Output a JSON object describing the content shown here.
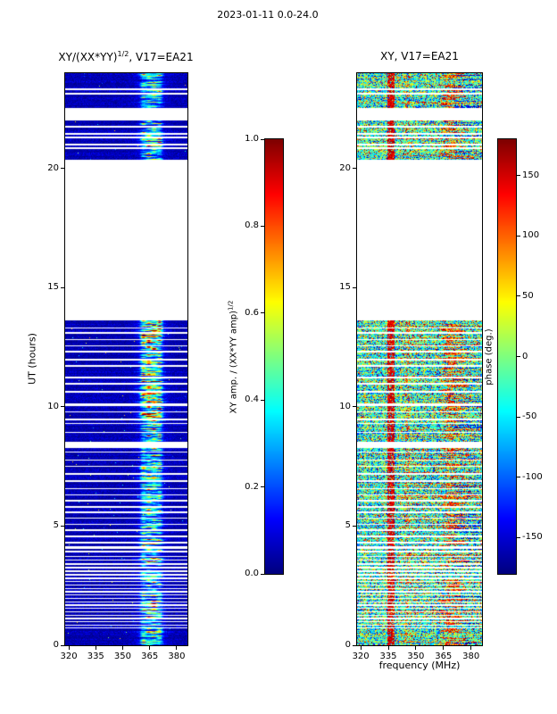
{
  "figure_title": "2023-01-11 0.0-24.0",
  "chart_data": [
    {
      "type": "heatmap",
      "name": "xy_normalized_amplitude",
      "title_parts": {
        "pre": "XY/(XX*YY)",
        "sup": "1/2",
        "post": ", V17=EA21"
      },
      "ylabel": "UT (hours)",
      "xlim": [
        318,
        386
      ],
      "ylim": [
        0,
        24
      ],
      "xticks": [
        320,
        335,
        350,
        365,
        380
      ],
      "yticks": [
        0,
        5,
        10,
        15,
        20
      ],
      "colormap": "jet",
      "value_range": [
        0,
        1
      ],
      "colorbar": {
        "label_parts": {
          "pre": "XY amp. / (XX*YY amp)",
          "sup": "1/2",
          "post": ""
        },
        "ticks": [
          {
            "label": "1.0",
            "value": 1.0
          },
          {
            "label": "0.8",
            "value": 0.8
          },
          {
            "label": "0.6",
            "value": 0.6
          },
          {
            "label": "0.4",
            "value": 0.4
          },
          {
            "label": "0.2",
            "value": 0.2
          },
          {
            "label": "0.0",
            "value": 0.0
          }
        ]
      },
      "background_level": [
        0.01,
        0.09
      ],
      "bright_band": {
        "center_mhz": 366,
        "sigma_mhz": 4.5,
        "amplitude": 0.38,
        "streak_centers_mhz": [
          361.5,
          364.5,
          367.5,
          370.5
        ]
      }
    },
    {
      "type": "heatmap",
      "name": "xy_phase",
      "title": "XY, V17=EA21",
      "xlabel": "frequency (MHz)",
      "xlim": [
        318,
        386
      ],
      "ylim": [
        0,
        24
      ],
      "xticks": [
        320,
        335,
        350,
        365,
        380
      ],
      "yticks": [
        0,
        5,
        10,
        15,
        20
      ],
      "colormap": "jet",
      "value_range": [
        -180,
        180
      ],
      "colorbar": {
        "label": "phase (deg.)",
        "ticks": [
          {
            "label": "150",
            "value": 150
          },
          {
            "label": "100",
            "value": 100
          },
          {
            "label": "50",
            "value": 50
          },
          {
            "label": "0",
            "value": 0
          },
          {
            "label": "-50",
            "value": -50
          },
          {
            "label": "-100",
            "value": -100
          },
          {
            "label": "-150",
            "value": -150
          }
        ]
      },
      "features": {
        "noise_bias_deg": -40,
        "red_column_mhz": 336.5,
        "red_patch_range_mhz": [
          362,
          378
        ]
      }
    }
  ],
  "time_gaps_hours": [
    [
      23.28,
      23.36
    ],
    [
      23.12,
      23.18
    ],
    [
      22.0,
      22.55
    ],
    [
      21.7,
      21.78
    ],
    [
      21.4,
      21.48
    ],
    [
      21.28,
      21.35
    ],
    [
      20.96,
      21.04
    ],
    [
      20.8,
      20.88
    ],
    [
      13.62,
      20.35
    ],
    [
      13.28,
      13.34
    ],
    [
      13.08,
      13.14
    ],
    [
      12.8,
      12.86
    ],
    [
      12.53,
      12.59
    ],
    [
      12.28,
      12.34
    ],
    [
      11.94,
      12.01
    ],
    [
      11.68,
      11.74
    ],
    [
      11.2,
      11.26
    ],
    [
      10.93,
      10.99
    ],
    [
      10.6,
      10.66
    ],
    [
      10.04,
      10.15
    ],
    [
      9.76,
      9.82
    ],
    [
      9.44,
      9.5
    ],
    [
      9.28,
      9.34
    ],
    [
      8.9,
      8.96
    ],
    [
      8.28,
      8.52
    ],
    [
      8.08,
      8.14
    ],
    [
      7.74,
      7.8
    ],
    [
      7.48,
      7.54
    ],
    [
      7.16,
      7.22
    ],
    [
      6.84,
      6.94
    ],
    [
      6.54,
      6.6
    ],
    [
      6.28,
      6.34
    ],
    [
      6.04,
      6.1
    ],
    [
      5.78,
      5.84
    ],
    [
      5.54,
      5.6
    ],
    [
      5.3,
      5.36
    ],
    [
      5.04,
      5.1
    ],
    [
      4.8,
      4.86
    ],
    [
      4.54,
      4.6
    ],
    [
      4.28,
      4.34
    ],
    [
      4.04,
      4.16
    ],
    [
      3.88,
      3.97
    ],
    [
      3.7,
      3.76
    ],
    [
      3.54,
      3.59
    ],
    [
      3.38,
      3.43
    ],
    [
      3.23,
      3.28
    ],
    [
      3.08,
      3.13
    ],
    [
      2.93,
      2.98
    ],
    [
      2.78,
      2.83
    ],
    [
      2.64,
      2.69
    ],
    [
      2.5,
      2.55
    ],
    [
      2.36,
      2.41
    ],
    [
      2.22,
      2.27
    ],
    [
      2.08,
      2.13
    ],
    [
      1.94,
      1.99
    ],
    [
      1.8,
      1.85
    ],
    [
      1.66,
      1.71
    ],
    [
      1.52,
      1.57
    ],
    [
      1.38,
      1.43
    ],
    [
      1.24,
      1.29
    ],
    [
      1.1,
      1.15
    ],
    [
      0.96,
      1.01
    ],
    [
      0.82,
      0.87
    ],
    [
      0.7,
      0.75
    ]
  ]
}
